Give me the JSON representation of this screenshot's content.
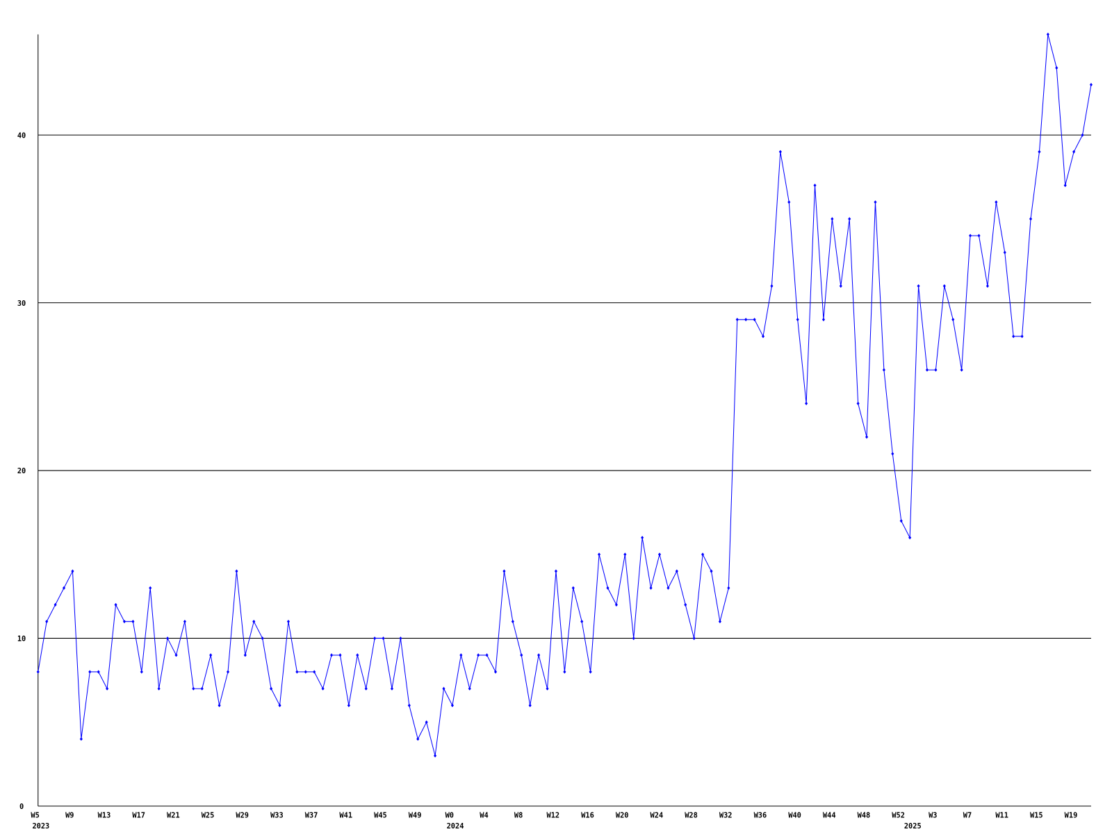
{
  "chart_data": {
    "type": "line",
    "categories": [
      "W5",
      null,
      null,
      null,
      "W9",
      null,
      null,
      null,
      "W13",
      null,
      null,
      null,
      "W17",
      null,
      null,
      null,
      "W21",
      null,
      null,
      null,
      "W25",
      null,
      null,
      null,
      "W29",
      null,
      null,
      null,
      "W33",
      null,
      null,
      null,
      "W37",
      null,
      null,
      null,
      "W41",
      null,
      null,
      null,
      "W45",
      null,
      null,
      null,
      "W49",
      null,
      null,
      null,
      "W0",
      null,
      null,
      null,
      "W4",
      null,
      null,
      null,
      "W8",
      null,
      null,
      null,
      "W12",
      null,
      null,
      null,
      "W16",
      null,
      null,
      null,
      "W20",
      null,
      null,
      null,
      "W24",
      null,
      null,
      null,
      "W28",
      null,
      null,
      null,
      "W32",
      null,
      null,
      null,
      "W36",
      null,
      null,
      null,
      "W40",
      null,
      null,
      null,
      "W44",
      null,
      null,
      null,
      "W48",
      null,
      null,
      null,
      "W52",
      null,
      null,
      null,
      "W3",
      null,
      null,
      null,
      "W7",
      null,
      null,
      null,
      "W11",
      null,
      null,
      null,
      "W15",
      null,
      null,
      null,
      "W19",
      null,
      null
    ],
    "year_labels": [
      "2023",
      null,
      null,
      null,
      null,
      null,
      null,
      null,
      null,
      null,
      null,
      null,
      null,
      null,
      null,
      null,
      null,
      null,
      null,
      null,
      null,
      null,
      null,
      null,
      null,
      null,
      null,
      null,
      null,
      null,
      null,
      null,
      null,
      null,
      null,
      null,
      null,
      null,
      null,
      null,
      null,
      null,
      null,
      null,
      null,
      null,
      null,
      null,
      "2024",
      null,
      null,
      null,
      null,
      null,
      null,
      null,
      null,
      null,
      null,
      null,
      null,
      null,
      null,
      null,
      null,
      null,
      null,
      null,
      null,
      null,
      null,
      null,
      null,
      null,
      null,
      null,
      null,
      null,
      null,
      null,
      null,
      null,
      null,
      null,
      null,
      null,
      null,
      null,
      null,
      null,
      null,
      null,
      null,
      null,
      null,
      null,
      null,
      null,
      null,
      null,
      null,
      "2025",
      null,
      null,
      null,
      null,
      null,
      null,
      null,
      null,
      null,
      null,
      null,
      null,
      null,
      null,
      null,
      null,
      null,
      null,
      null,
      null
    ],
    "series": [
      {
        "color": "#0000ff",
        "values": [
          8,
          11,
          12,
          13,
          14,
          4,
          8,
          8,
          7,
          12,
          11,
          11,
          8,
          13,
          7,
          10,
          9,
          11,
          7,
          7,
          9,
          6,
          8,
          14,
          9,
          11,
          10,
          7,
          6,
          11,
          8,
          8,
          8,
          7,
          9,
          9,
          6,
          9,
          7,
          10,
          10,
          7,
          10,
          6,
          4,
          5,
          3,
          7,
          6,
          9,
          7,
          9,
          9,
          8,
          14,
          11,
          9,
          6,
          9,
          7,
          14,
          8,
          13,
          11,
          8,
          15,
          13,
          12,
          15,
          10,
          16,
          13,
          15,
          13,
          14,
          12,
          10,
          15,
          14,
          11,
          13,
          29,
          29,
          29,
          28,
          31,
          39,
          36,
          29,
          24,
          37,
          29,
          35,
          31,
          35,
          24,
          22,
          36,
          26,
          21,
          17,
          16,
          31,
          26,
          26,
          31,
          29,
          26,
          34,
          34,
          31,
          36,
          33,
          28,
          28,
          35,
          39,
          46,
          44,
          37,
          39,
          40,
          43
        ]
      }
    ],
    "ylim": [
      0,
      46
    ],
    "yticks": [
      0,
      10,
      20,
      30,
      40
    ],
    "grid": true
  }
}
